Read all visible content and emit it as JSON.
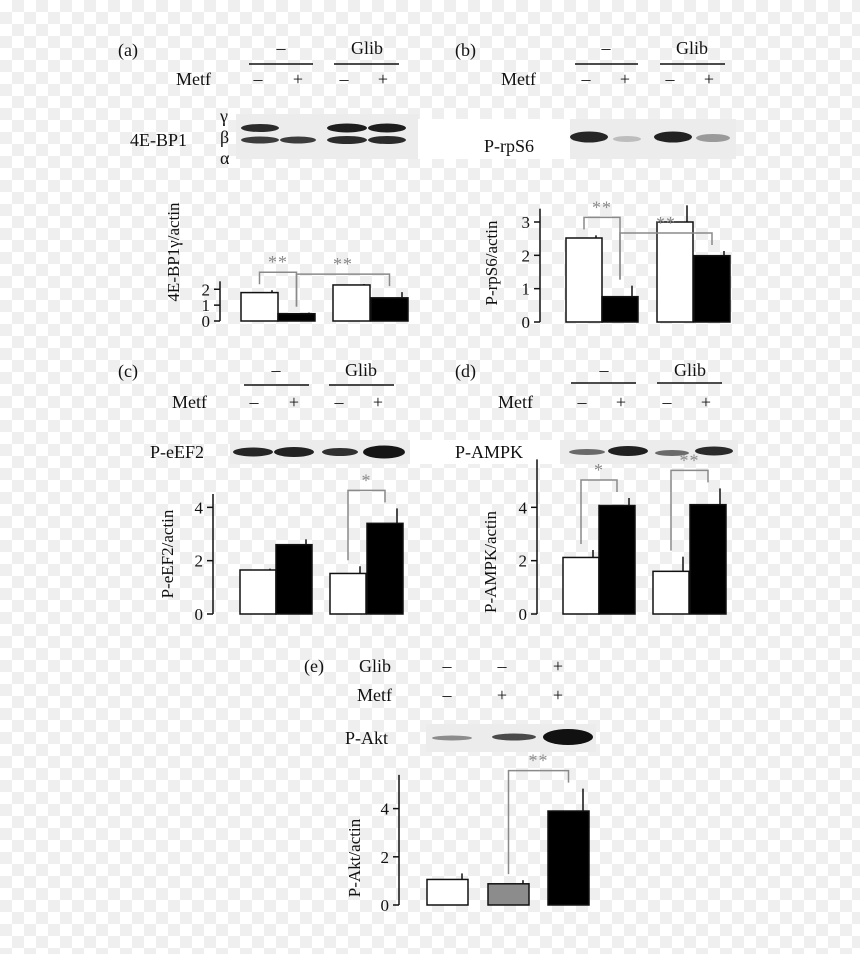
{
  "panels": [
    {
      "letter": "(a)",
      "groups": [
        "–",
        "Glib"
      ],
      "row_label": "Metf",
      "lanes": [
        "–",
        "+",
        "–",
        "+"
      ],
      "blot_label": "4E-BP1",
      "isoforms": [
        "γ",
        "β",
        "α"
      ]
    },
    {
      "letter": "(b)",
      "groups": [
        "–",
        "Glib"
      ],
      "row_label": "Metf",
      "lanes": [
        "–",
        "+",
        "–",
        "+"
      ],
      "blot_label": "P-rpS6"
    },
    {
      "letter": "(c)",
      "groups": [
        "–",
        "Glib"
      ],
      "row_label": "Metf",
      "lanes": [
        "–",
        "+",
        "–",
        "+"
      ],
      "blot_label": "P-eEF2"
    },
    {
      "letter": "(d)",
      "groups": [
        "–",
        "Glib"
      ],
      "row_label": "Metf",
      "lanes": [
        "–",
        "+",
        "–",
        "+"
      ],
      "blot_label": "P-AMPK"
    },
    {
      "letter": "(e)",
      "glib_label": "Glib",
      "glib_lanes": [
        "–",
        "–",
        "+"
      ],
      "metf_label": "Metf",
      "metf_lanes": [
        "–",
        "+",
        "+"
      ],
      "blot_label": "P-Akt"
    }
  ],
  "chart_data": [
    {
      "type": "bar",
      "panel": "(a)",
      "ylabel": "4E-BP1γ/actin",
      "ylim": [
        0,
        2.5
      ],
      "yticks": [
        0,
        1,
        2
      ],
      "groups": [
        "–",
        "Glib"
      ],
      "bars": [
        {
          "value": 1.79,
          "error": 0.15,
          "fill": "white"
        },
        {
          "value": 0.46,
          "error": 0.07,
          "fill": "black"
        },
        {
          "value": 2.27,
          "error": 0.06,
          "fill": "white"
        },
        {
          "value": 1.46,
          "error": 0.36,
          "fill": "black"
        }
      ],
      "significance": [
        {
          "from": 0,
          "to": 1,
          "label": "**"
        },
        {
          "from": 1,
          "to": 3,
          "label": "**"
        }
      ]
    },
    {
      "type": "bar",
      "panel": "(b)",
      "ylabel": "P-rpS6/actin",
      "ylim": [
        0,
        3.4
      ],
      "yticks": [
        0,
        1,
        2,
        3
      ],
      "groups": [
        "–",
        "Glib"
      ],
      "bars": [
        {
          "value": 2.52,
          "error": 0.08,
          "fill": "white"
        },
        {
          "value": 0.76,
          "error": 0.33,
          "fill": "black"
        },
        {
          "value": 3.0,
          "error": 0.5,
          "fill": "white"
        },
        {
          "value": 1.99,
          "error": 0.14,
          "fill": "black"
        }
      ],
      "significance": [
        {
          "from": 0,
          "to": 1,
          "label": "**"
        },
        {
          "from": 1,
          "to": 3,
          "label": "**"
        }
      ]
    },
    {
      "type": "bar",
      "panel": "(c)",
      "ylabel": "P-eEF2/actin",
      "ylim": [
        0,
        4.5
      ],
      "yticks": [
        0,
        2,
        4
      ],
      "groups": [
        "–",
        "Glib"
      ],
      "bars": [
        {
          "value": 1.65,
          "error": 0.05,
          "fill": "white"
        },
        {
          "value": 2.6,
          "error": 0.2,
          "fill": "black"
        },
        {
          "value": 1.52,
          "error": 0.27,
          "fill": "white"
        },
        {
          "value": 3.4,
          "error": 0.56,
          "fill": "black"
        }
      ],
      "significance": [
        {
          "from": 2,
          "to": 3,
          "label": "*"
        }
      ]
    },
    {
      "type": "bar",
      "panel": "(d)",
      "ylabel": "P-AMPK/actin",
      "ylim": [
        0,
        5.8
      ],
      "yticks": [
        0,
        2,
        4
      ],
      "groups": [
        "–",
        "Glib"
      ],
      "bars": [
        {
          "value": 2.12,
          "error": 0.28,
          "fill": "white"
        },
        {
          "value": 4.07,
          "error": 0.28,
          "fill": "black"
        },
        {
          "value": 1.6,
          "error": 0.55,
          "fill": "white"
        },
        {
          "value": 4.1,
          "error": 0.61,
          "fill": "black"
        }
      ],
      "significance": [
        {
          "from": 0,
          "to": 1,
          "label": "*"
        },
        {
          "from": 2,
          "to": 3,
          "label": "**"
        }
      ]
    },
    {
      "type": "bar",
      "panel": "(e)",
      "ylabel": "P-Akt/actin",
      "ylim": [
        0,
        5.4
      ],
      "yticks": [
        0,
        2,
        4
      ],
      "bars": [
        {
          "value": 1.06,
          "error": 0.25,
          "fill": "white"
        },
        {
          "value": 0.88,
          "error": 0.15,
          "fill": "gray"
        },
        {
          "value": 3.9,
          "error": 0.93,
          "fill": "black"
        }
      ],
      "significance": [
        {
          "from": 1,
          "to": 2,
          "label": "**"
        }
      ]
    }
  ]
}
